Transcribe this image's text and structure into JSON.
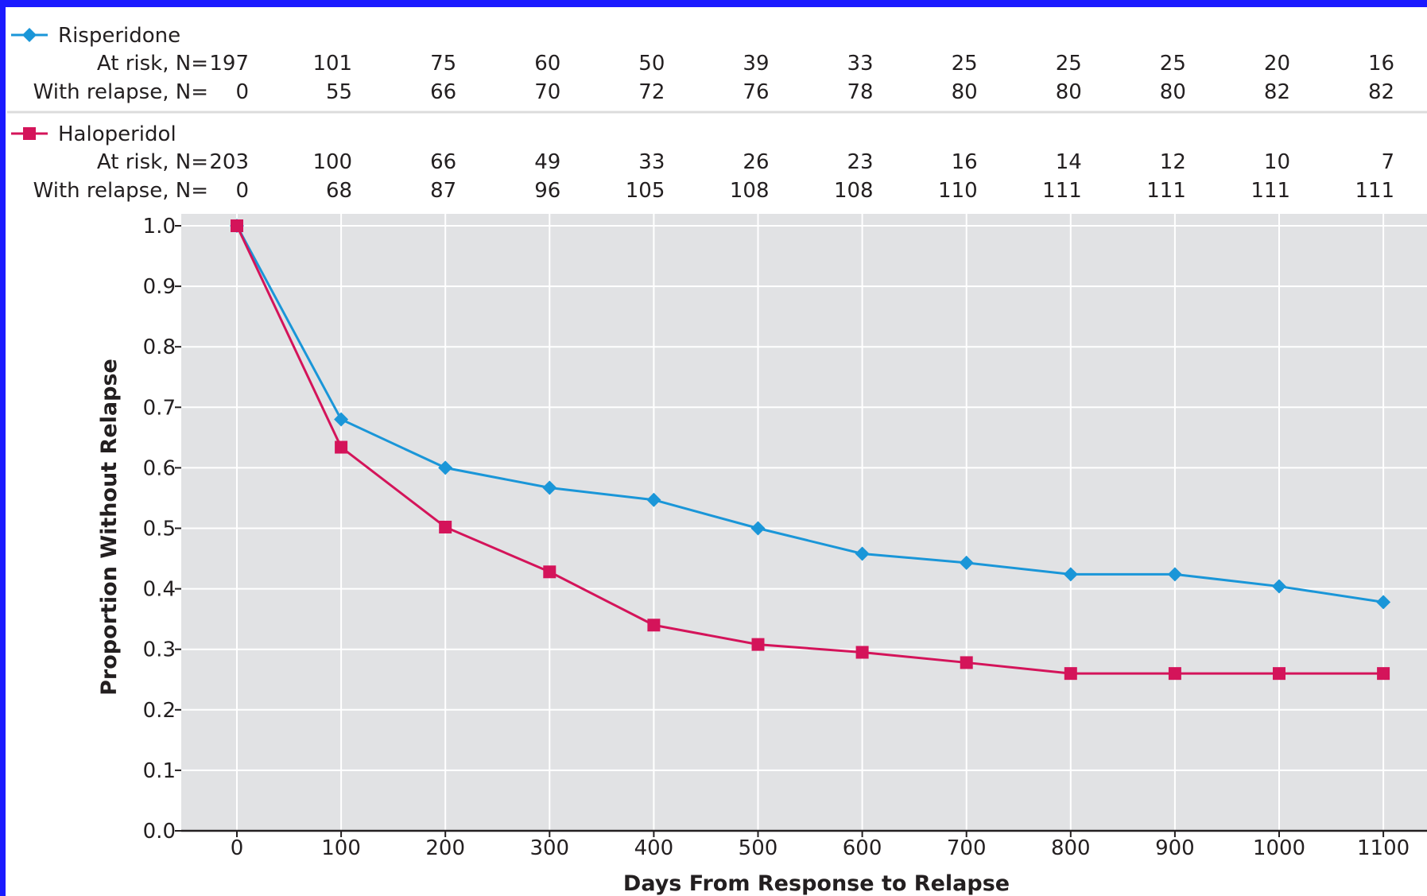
{
  "chart_data": {
    "type": "line",
    "xlabel": "Days From Response to Relapse",
    "ylabel": "Proportion Without Relapse",
    "x": [
      0,
      100,
      200,
      300,
      400,
      500,
      600,
      700,
      800,
      900,
      1000,
      1100
    ],
    "xlim": [
      -55,
      1140
    ],
    "ylim": [
      0,
      1.0
    ],
    "y_ticks": [
      "0.0",
      "0.1",
      "0.2",
      "0.3",
      "0.4",
      "0.5",
      "0.6",
      "0.7",
      "0.8",
      "0.9",
      "1.0"
    ],
    "x_ticks": [
      "0",
      "100",
      "200",
      "300",
      "400",
      "500",
      "600",
      "700",
      "800",
      "900",
      "1000",
      "1100"
    ],
    "grid": true,
    "series": [
      {
        "name": "Risperidone",
        "color": "#1a96d8",
        "marker": "diamond",
        "values": [
          1.0,
          0.68,
          0.6,
          0.567,
          0.547,
          0.5,
          0.458,
          0.443,
          0.424,
          0.424,
          0.404,
          0.378
        ]
      },
      {
        "name": "Haloperidol",
        "color": "#d4145a",
        "marker": "square",
        "values": [
          1.0,
          0.634,
          0.502,
          0.428,
          0.34,
          0.308,
          0.295,
          0.278,
          0.26,
          0.26,
          0.26,
          0.26
        ]
      }
    ]
  },
  "risk_table": {
    "groups": [
      {
        "name": "Risperidone",
        "rows": [
          {
            "label": "At risk, N=",
            "values": [
              "197",
              "101",
              "75",
              "60",
              "50",
              "39",
              "33",
              "25",
              "25",
              "25",
              "20",
              "16"
            ]
          },
          {
            "label": "With relapse, N=",
            "values": [
              "0",
              "55",
              "66",
              "70",
              "72",
              "76",
              "78",
              "80",
              "80",
              "80",
              "82",
              "82"
            ]
          }
        ]
      },
      {
        "name": "Haloperidol",
        "rows": [
          {
            "label": "At risk, N=",
            "values": [
              "203",
              "100",
              "66",
              "49",
              "33",
              "26",
              "23",
              "16",
              "14",
              "12",
              "10",
              "7"
            ]
          },
          {
            "label": "With relapse, N=",
            "values": [
              "0",
              "68",
              "87",
              "96",
              "105",
              "108",
              "108",
              "110",
              "111",
              "111",
              "111",
              "111"
            ]
          }
        ]
      }
    ]
  },
  "colors": {
    "frame": "#1a1aff",
    "plot_bg": "#e1e2e4",
    "grid": "#ffffff",
    "separator": "#dcdcdc"
  }
}
